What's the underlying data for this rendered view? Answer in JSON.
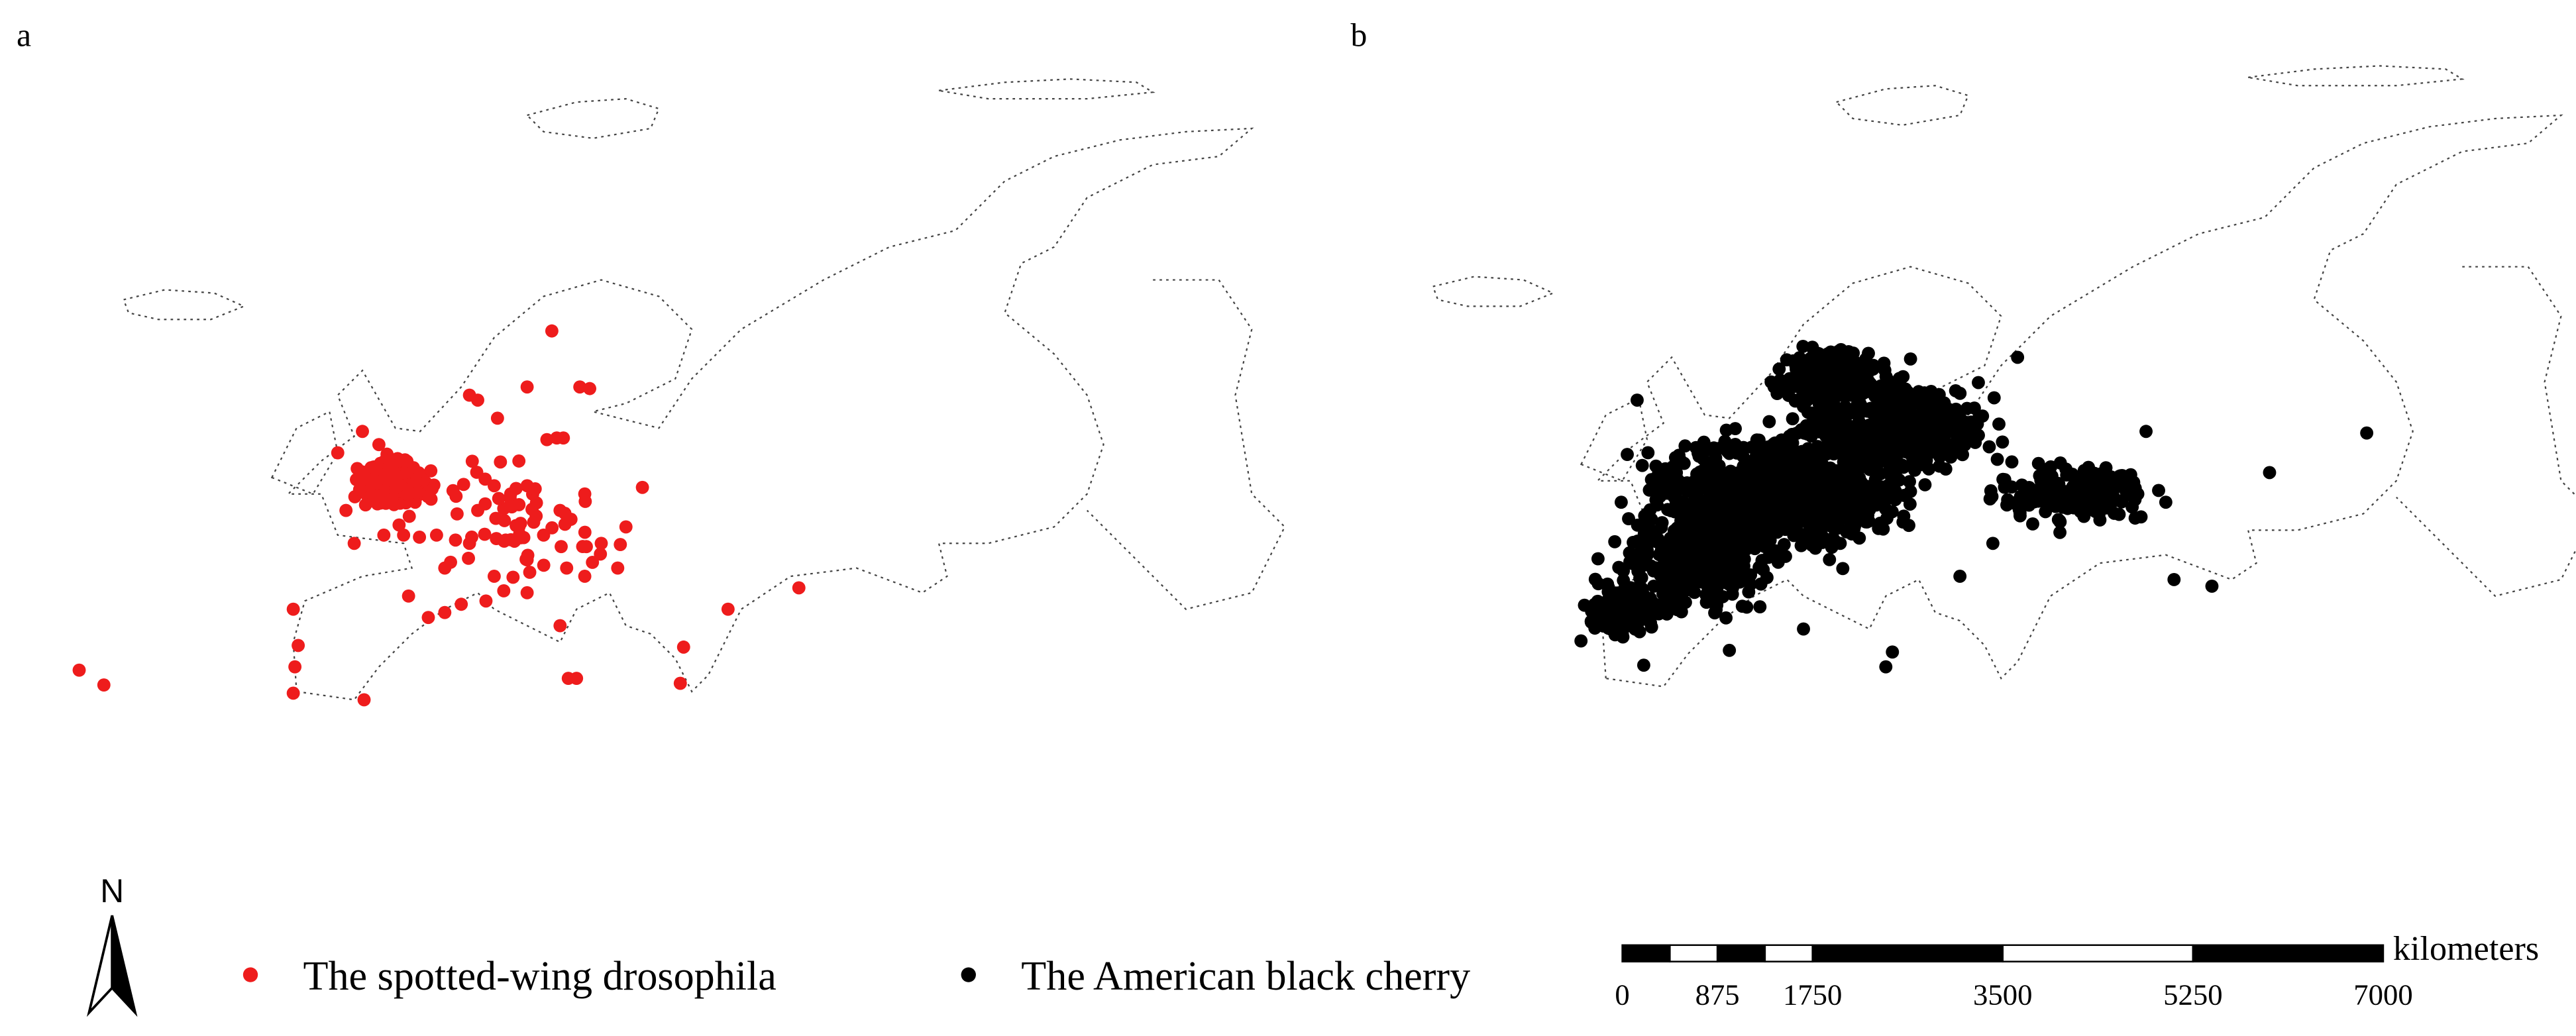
{
  "panels": [
    {
      "label": "a",
      "series": {
        "name": "The spotted-wing drosophila",
        "color": "#ee1c1c"
      }
    },
    {
      "label": "b",
      "series": {
        "name": "The American black cherry",
        "color": "#000000"
      }
    }
  ],
  "north_arrow": {
    "label": "N"
  },
  "scale_bar": {
    "unit": "kilometers",
    "ticks": [
      0,
      875,
      1750,
      3500,
      5250,
      7000
    ]
  }
}
